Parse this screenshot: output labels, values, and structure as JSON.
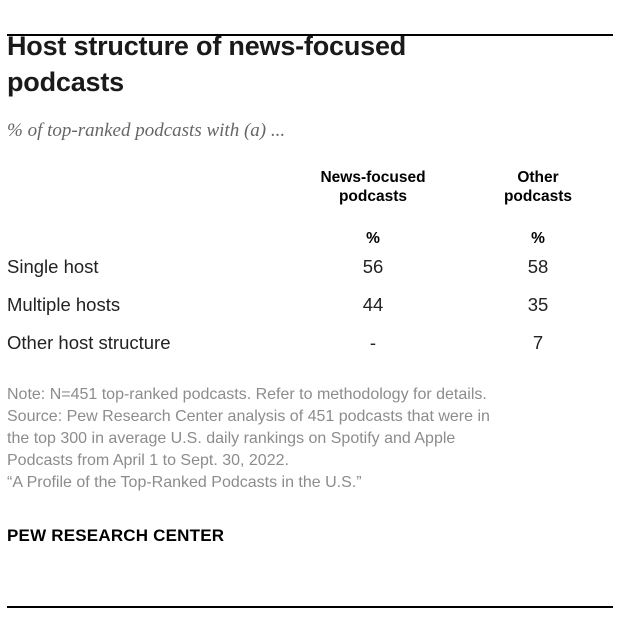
{
  "header": {
    "title": "Host structure of news-focused podcasts",
    "subtitle": "% of top-ranked podcasts with (a) ..."
  },
  "table": {
    "columns": [
      "News-focused podcasts",
      "Other podcasts"
    ],
    "units": [
      "%",
      "%"
    ],
    "rows": [
      {
        "label": "Single host",
        "values": [
          "56",
          "58"
        ]
      },
      {
        "label": "Multiple hosts",
        "values": [
          "44",
          "35"
        ]
      },
      {
        "label": "Other host structure",
        "values": [
          "-",
          "7"
        ]
      }
    ]
  },
  "notes": {
    "lines": [
      "Note: N=451 top-ranked podcasts. Refer to methodology for details.",
      "Source: Pew Research Center analysis of 451 podcasts that were in",
      "the top 300 in average U.S. daily rankings on Spotify and Apple",
      "Podcasts from April 1 to Sept. 30, 2022.",
      "“A Profile of the Top-Ranked Podcasts in the U.S.”"
    ]
  },
  "footer": {
    "brand": "PEW RESEARCH CENTER"
  },
  "colors": {
    "text": "#1a1a1a",
    "body_text": "#222222",
    "muted": "#8c8c8c",
    "subtitle": "#666666",
    "rule": "#000000",
    "background": "#ffffff"
  },
  "chart_data": {
    "type": "table",
    "title": "Host structure of news-focused podcasts",
    "subtitle": "% of top-ranked podcasts with (a) ...",
    "columns": [
      "News-focused podcasts",
      "Other podcasts"
    ],
    "unit": "%",
    "categories": [
      "Single host",
      "Multiple hosts",
      "Other host structure"
    ],
    "series": [
      {
        "name": "News-focused podcasts",
        "values": [
          56,
          44,
          null
        ]
      },
      {
        "name": "Other podcasts",
        "values": [
          58,
          35,
          7
        ]
      }
    ],
    "missing_value_symbol": "-",
    "source_note": "N=451 top-ranked podcasts; Pew Research Center analysis of 451 podcasts in the top 300 average U.S. daily rankings on Spotify and Apple Podcasts, April 1 to Sept. 30, 2022."
  }
}
